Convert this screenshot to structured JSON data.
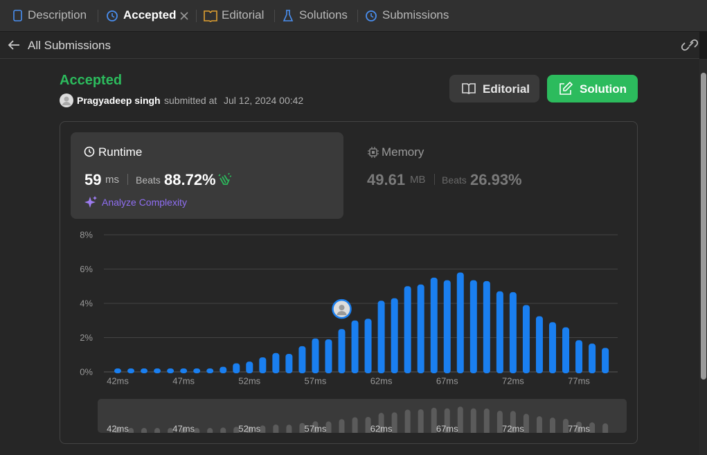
{
  "tabs": [
    "Description",
    "Accepted",
    "Editorial",
    "Solutions",
    "Submissions"
  ],
  "back_link": "All Submissions",
  "submission": {
    "status": "Accepted",
    "user": "Pragyadeep singh",
    "submitted_label": "submitted at",
    "date": "Jul 12, 2024 00:42"
  },
  "buttons": [
    "Editorial",
    "Solution"
  ],
  "runtime": {
    "title": "Runtime",
    "value": "59",
    "unit": "ms",
    "beats_label": "Beats",
    "beats": "88.72%",
    "analyze": "Analyze Complexity"
  },
  "memory": {
    "title": "Memory",
    "value": "49.61",
    "unit": "MB",
    "beats_label": "Beats",
    "beats": "26.93%"
  },
  "chart_data": {
    "type": "bar",
    "categories": [
      "42ms",
      null,
      null,
      null,
      null,
      "47ms",
      null,
      null,
      null,
      null,
      "52ms",
      null,
      null,
      null,
      null,
      "57ms",
      null,
      null,
      null,
      null,
      "62ms",
      null,
      null,
      null,
      null,
      "67ms",
      null,
      null,
      null,
      null,
      "72ms",
      null,
      null,
      null,
      null,
      "77ms",
      null,
      null
    ],
    "values": [
      0.2,
      0.2,
      0.2,
      0.2,
      0.2,
      0.2,
      0.2,
      0.2,
      0.3,
      0.5,
      0.6,
      0.85,
      1.1,
      1.05,
      1.5,
      1.95,
      1.9,
      2.5,
      3.0,
      3.1,
      4.15,
      4.3,
      5.0,
      5.1,
      5.5,
      5.35,
      5.8,
      5.35,
      5.3,
      4.7,
      4.65,
      3.9,
      3.25,
      2.9,
      2.6,
      1.85,
      1.65,
      1.4
    ],
    "color": "#1a7ff0",
    "overview_color": "#5b5b5b",
    "highlight_index": 17,
    "ylim": [
      0,
      8
    ],
    "yticks": [
      {
        "value": 0,
        "label": "0%"
      },
      {
        "value": 2,
        "label": "2%"
      },
      {
        "value": 4,
        "label": "4%"
      },
      {
        "value": 6,
        "label": "6%"
      },
      {
        "value": 8,
        "label": "8%"
      }
    ],
    "grid": true
  }
}
